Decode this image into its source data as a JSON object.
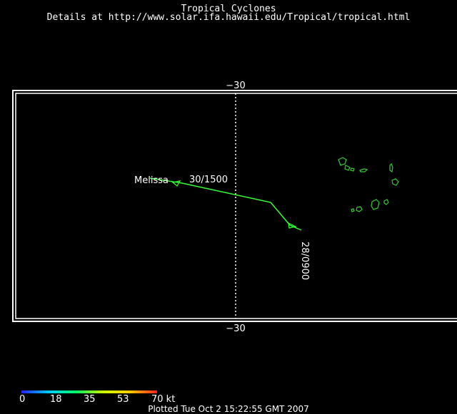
{
  "header": {
    "title": "Tropical Cyclones",
    "subtitle": "Details at http://www.solar.ifa.hawaii.edu/Tropical/tropical.html"
  },
  "map": {
    "lat_label_top": "−30",
    "lat_label_bottom": "−30",
    "storm": {
      "name": "Melissa",
      "label_end": "30/1500",
      "label_start": "28/0900",
      "track_color": "#33ff33"
    },
    "land_color": "#33cc33",
    "frame_color": "#ffffff"
  },
  "legend": {
    "labels": [
      "0",
      "18",
      "35",
      "53",
      "70 kt"
    ],
    "gradient_colors": [
      "#2020ff",
      "#00ccff",
      "#00ff66",
      "#ccff00",
      "#ffcc00",
      "#ff2020"
    ]
  },
  "footer": {
    "plotted": "Plotted Tue Oct 2 15:22:55 GMT 2007"
  }
}
